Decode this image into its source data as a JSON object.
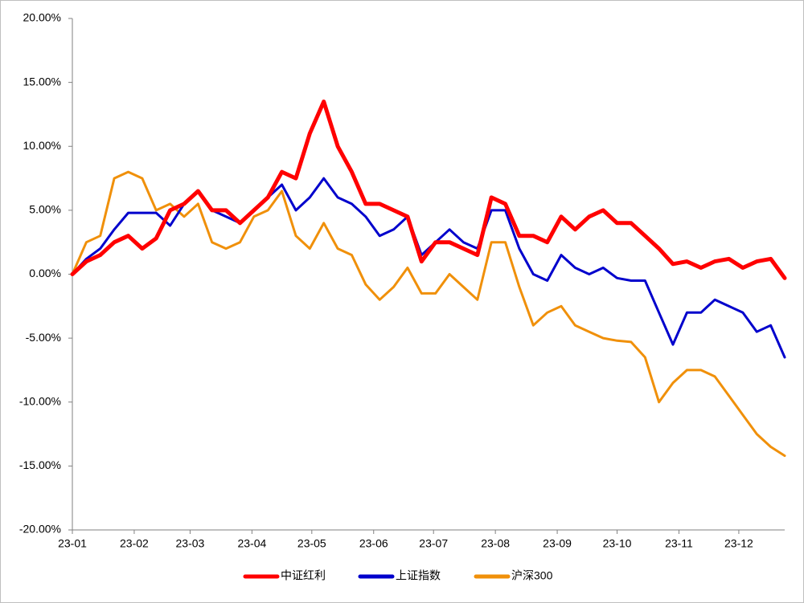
{
  "chart_data": {
    "type": "line",
    "x": [
      0,
      7,
      14,
      21,
      28,
      35,
      42,
      49,
      56,
      63,
      70,
      77,
      84,
      91,
      98,
      105,
      112,
      119,
      126,
      133,
      140,
      147,
      154,
      161,
      168,
      175,
      182,
      189,
      196,
      203,
      210,
      217,
      224,
      231,
      238,
      245,
      252,
      259,
      266,
      273,
      280,
      287,
      294,
      301,
      308,
      315,
      322,
      329,
      336,
      343,
      350,
      357
    ],
    "xlim": [
      0,
      357
    ],
    "xticks": [
      {
        "value": 0,
        "label": "23-01"
      },
      {
        "value": 31,
        "label": "23-02"
      },
      {
        "value": 59,
        "label": "23-03"
      },
      {
        "value": 90,
        "label": "23-04"
      },
      {
        "value": 120,
        "label": "23-05"
      },
      {
        "value": 151,
        "label": "23-06"
      },
      {
        "value": 181,
        "label": "23-07"
      },
      {
        "value": 212,
        "label": "23-08"
      },
      {
        "value": 243,
        "label": "23-09"
      },
      {
        "value": 273,
        "label": "23-10"
      },
      {
        "value": 304,
        "label": "23-11"
      },
      {
        "value": 334,
        "label": "23-12"
      }
    ],
    "ylim": [
      -20,
      20
    ],
    "yticks": [
      {
        "value": -20,
        "label": "-20.00%"
      },
      {
        "value": -15,
        "label": "-15.00%"
      },
      {
        "value": -10,
        "label": "-10.00%"
      },
      {
        "value": -5,
        "label": "-5.00%"
      },
      {
        "value": 0,
        "label": "0.00%"
      },
      {
        "value": 5,
        "label": "5.00%"
      },
      {
        "value": 10,
        "label": "10.00%"
      },
      {
        "value": 15,
        "label": "15.00%"
      },
      {
        "value": 20,
        "label": "20.00%"
      }
    ],
    "grid": false,
    "legend": "bottom",
    "series": [
      {
        "name": "中证红利",
        "color": "#ff0000",
        "values": [
          0,
          1,
          1.5,
          2.5,
          3,
          2,
          2.8,
          5,
          5.5,
          6.5,
          5,
          5,
          4,
          5,
          6,
          8,
          7.5,
          11,
          13.5,
          10,
          8,
          5.5,
          5.5,
          5,
          4.5,
          1,
          2.5,
          2.5,
          2,
          1.5,
          6,
          5.5,
          3,
          3,
          2.5,
          4.5,
          3.5,
          4.5,
          5,
          4,
          4,
          3,
          2,
          0.8,
          1,
          0.5,
          1,
          1.2,
          0.5,
          1,
          1.2,
          -0.3
        ]
      },
      {
        "name": "上证指数",
        "color": "#0000cc",
        "values": [
          0,
          1.2,
          2,
          3.5,
          4.8,
          4.8,
          4.8,
          3.8,
          5.5,
          6.5,
          5,
          4.5,
          4,
          5,
          6,
          7,
          5,
          6,
          7.5,
          6,
          5.5,
          4.5,
          3,
          3.5,
          4.5,
          1.5,
          2.5,
          3.5,
          2.5,
          2,
          5,
          5,
          2,
          0,
          -0.5,
          1.5,
          0.5,
          0,
          0.5,
          -0.3,
          -0.5,
          -0.5,
          -3,
          -5.5,
          -3,
          -3,
          -2,
          -2.5,
          -3,
          -4.5,
          -4,
          -6.5
        ]
      },
      {
        "name": "沪深300",
        "color": "#f0900a",
        "values": [
          0,
          2.5,
          3,
          7.5,
          8,
          7.5,
          5,
          5.5,
          4.5,
          5.5,
          2.5,
          2,
          2.5,
          4.5,
          5,
          6.5,
          3,
          2,
          4,
          2,
          1.5,
          -0.8,
          -2,
          -1,
          0.5,
          -1.5,
          -1.5,
          0,
          -1,
          -2,
          2.5,
          2.5,
          -1,
          -4,
          -3,
          -2.5,
          -4,
          -4.5,
          -5,
          -5.2,
          -5.3,
          -6.5,
          -10,
          -8.5,
          -7.5,
          -7.5,
          -8,
          -9.5,
          -11,
          -12.5,
          -13.5,
          -14.2
        ]
      }
    ]
  }
}
